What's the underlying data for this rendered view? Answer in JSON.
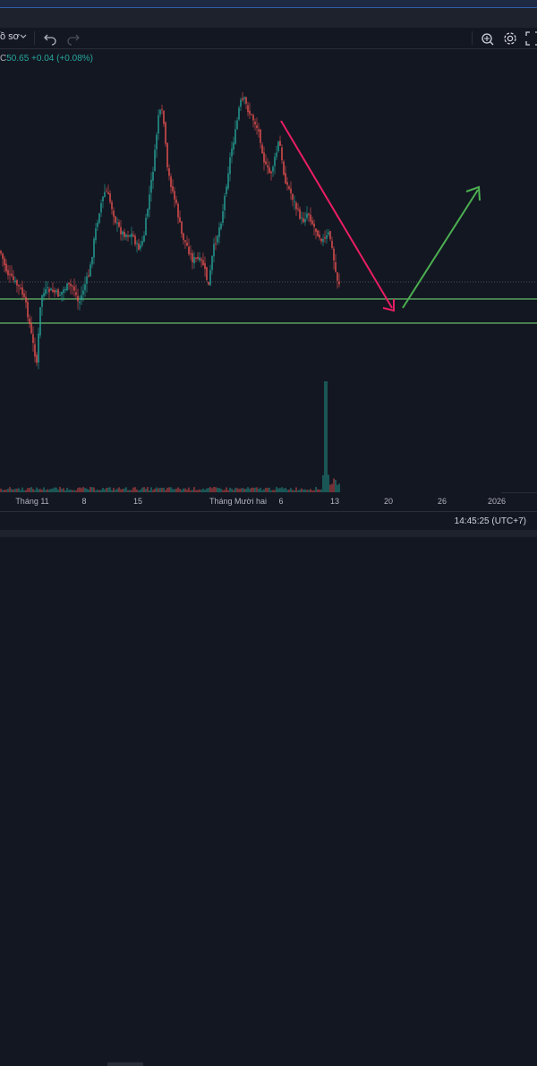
{
  "toolbar": {
    "chart_label": "ồ sơ",
    "icons": [
      "chevron-down-icon",
      "undo-icon",
      "redo-icon",
      "screenshot-icon",
      "gear-icon",
      "fullscreen-icon"
    ]
  },
  "legend": {
    "prefix": "C",
    "close": "50.65",
    "change": "+0.04 (+0.08%)"
  },
  "colors": {
    "up": "#26a69a",
    "down": "#ef5350",
    "background": "#131722",
    "arrow_down": "#e91e63",
    "arrow_up": "#4caf50",
    "hline": "#66bb6a"
  },
  "chart_data": {
    "type": "candlestick",
    "x_ticks": [
      "Tháng 11",
      "8",
      "15",
      "Tháng Mười hai",
      "6",
      "13",
      "20",
      "26",
      "2026"
    ],
    "annotations": [
      "down-arrow",
      "up-arrow",
      "horizontal-line",
      "horizontal-line"
    ]
  },
  "status": {
    "clock": "14:45:25 (UTC+7)"
  }
}
